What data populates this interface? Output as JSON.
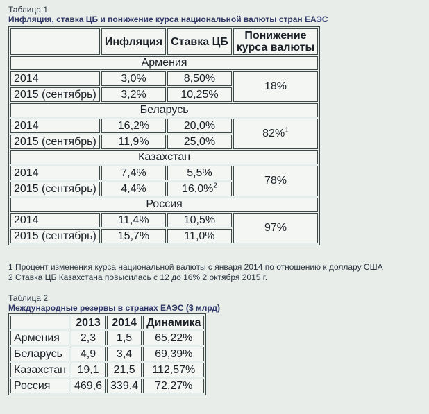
{
  "table1": {
    "caption": "Таблица 1",
    "title": "Инфляция, ставка ЦБ и понижение курса национальной валюты стран ЕАЭС",
    "headers": {
      "blank": "",
      "inflation": "Инфляция",
      "rate": "Ставка ЦБ",
      "devaluation_line1": "Понижение",
      "devaluation_line2": "курса валюты"
    },
    "groups": [
      {
        "region": "Армения",
        "devaluation": "18%",
        "devaluation_sup": "",
        "rows": [
          {
            "period": "2014",
            "inflation": "3,0%",
            "rate": "8,50%",
            "rate_sup": ""
          },
          {
            "period": "2015 (сентябрь)",
            "inflation": "3,2%",
            "rate": "10,25%",
            "rate_sup": ""
          }
        ]
      },
      {
        "region": "Беларусь",
        "devaluation": "82%",
        "devaluation_sup": "1",
        "rows": [
          {
            "period": "2014",
            "inflation": "16,2%",
            "rate": "20,0%",
            "rate_sup": ""
          },
          {
            "period": "2015 (сентябрь)",
            "inflation": "11,9%",
            "rate": "25,0%",
            "rate_sup": ""
          }
        ]
      },
      {
        "region": "Казахстан",
        "devaluation": "78%",
        "devaluation_sup": "",
        "rows": [
          {
            "period": "2014",
            "inflation": "7,4%",
            "rate": "5,5%",
            "rate_sup": ""
          },
          {
            "period": "2015 (сентябрь)",
            "inflation": "4,4%",
            "rate": "16,0%",
            "rate_sup": "2"
          }
        ]
      },
      {
        "region": "Россия",
        "devaluation": "97%",
        "devaluation_sup": "",
        "rows": [
          {
            "period": "2014",
            "inflation": "11,4%",
            "rate": "10,5%",
            "rate_sup": ""
          },
          {
            "period": "2015 (сентябрь)",
            "inflation": "15,7%",
            "rate": "11,0%",
            "rate_sup": ""
          }
        ]
      }
    ],
    "footnotes": [
      "1 Процент изменения курса национальной валюты с января 2014 по отношению к доллару США",
      "2 Ставка ЦБ Казахстана повысилась с 12 до 16% 2 октября 2015 г."
    ]
  },
  "table2": {
    "caption": "Таблица 2",
    "title": "Международные резервы в странах ЕАЭС ($ млрд)",
    "headers": {
      "blank": "",
      "y2013": "2013",
      "y2014": "2014",
      "dynamics": "Динамика"
    },
    "rows": [
      {
        "country": "Армения",
        "y2013": "2,3",
        "y2014": "1,5",
        "dynamics": "65,22%"
      },
      {
        "country": "Беларусь",
        "y2013": "4,9",
        "y2014": "3,4",
        "dynamics": "69,39%"
      },
      {
        "country": "Казахстан",
        "y2013": "19,1",
        "y2014": "21,5",
        "dynamics": "112,57%"
      },
      {
        "country": "Россия",
        "y2013": "469,6",
        "y2014": "339,4",
        "dynamics": "72,27%"
      }
    ]
  }
}
